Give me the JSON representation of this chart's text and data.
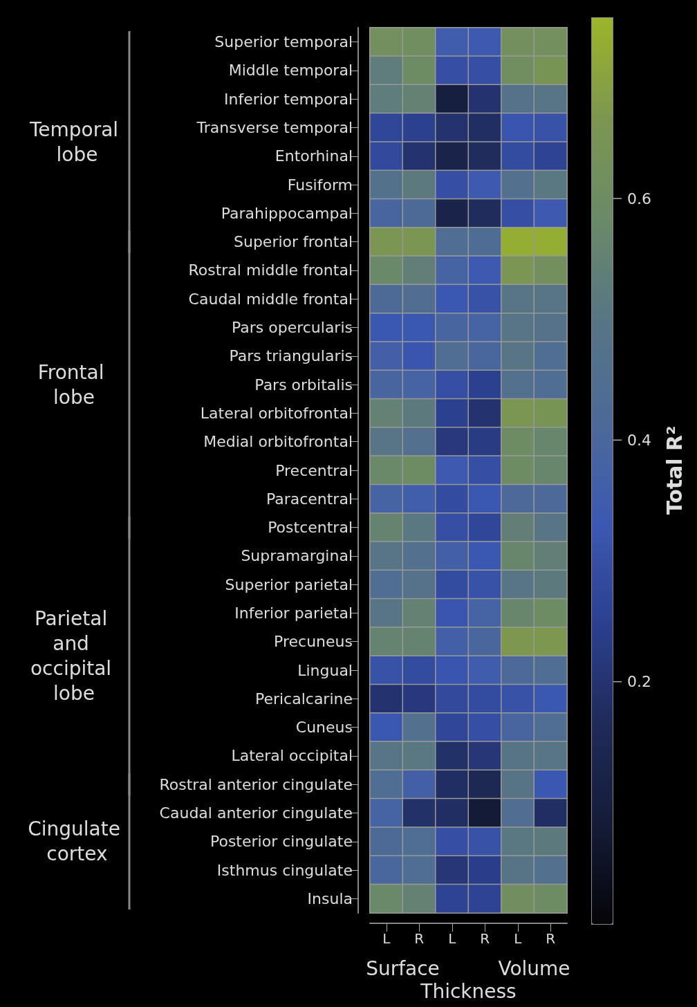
{
  "chart_data": {
    "type": "heatmap",
    "categories": [
      "L",
      "R",
      "L",
      "R",
      "L",
      "R"
    ],
    "y_categories": [
      "Superior temporal",
      "Middle temporal",
      "Inferior temporal",
      "Transverse temporal",
      "Entorhinal",
      "Fusiform",
      "Parahippocampal",
      "Superior frontal",
      "Rostral middle frontal",
      "Caudal middle frontal",
      "Pars opercularis",
      "Pars triangularis",
      "Pars orbitalis",
      "Lateral orbitofrontal",
      "Medial orbitofrontal",
      "Precentral",
      "Paracentral",
      "Postcentral",
      "Supramarginal",
      "Superior parietal",
      "Inferior parietal",
      "Precuneus",
      "Lingual",
      "Pericalcarine",
      "Cuneus",
      "Lateral occipital",
      "Rostral anterior cingulate",
      "Caudal anterior cingulate",
      "Posterior cingulate",
      "Isthmus cingulate",
      "Insula"
    ],
    "cells": [
      [
        0.62,
        0.61,
        0.35,
        0.34,
        0.62,
        0.62
      ],
      [
        0.53,
        0.6,
        0.3,
        0.3,
        0.61,
        0.65
      ],
      [
        0.53,
        0.55,
        0.1,
        0.2,
        0.48,
        0.5
      ],
      [
        0.27,
        0.25,
        0.2,
        0.18,
        0.32,
        0.31
      ],
      [
        0.28,
        0.2,
        0.13,
        0.17,
        0.29,
        0.26
      ],
      [
        0.47,
        0.52,
        0.3,
        0.34,
        0.46,
        0.51
      ],
      [
        0.39,
        0.42,
        0.13,
        0.17,
        0.3,
        0.34
      ],
      [
        0.66,
        0.66,
        0.44,
        0.43,
        0.73,
        0.73
      ],
      [
        0.58,
        0.54,
        0.38,
        0.34,
        0.66,
        0.62
      ],
      [
        0.42,
        0.45,
        0.33,
        0.31,
        0.5,
        0.5
      ],
      [
        0.33,
        0.33,
        0.39,
        0.38,
        0.5,
        0.48
      ],
      [
        0.37,
        0.32,
        0.44,
        0.4,
        0.5,
        0.44
      ],
      [
        0.39,
        0.38,
        0.3,
        0.25,
        0.46,
        0.44
      ],
      [
        0.55,
        0.52,
        0.25,
        0.2,
        0.66,
        0.65
      ],
      [
        0.5,
        0.46,
        0.22,
        0.23,
        0.6,
        0.57
      ],
      [
        0.58,
        0.6,
        0.34,
        0.3,
        0.6,
        0.57
      ],
      [
        0.38,
        0.36,
        0.29,
        0.33,
        0.41,
        0.41
      ],
      [
        0.56,
        0.51,
        0.3,
        0.27,
        0.54,
        0.5
      ],
      [
        0.5,
        0.46,
        0.37,
        0.33,
        0.57,
        0.54
      ],
      [
        0.44,
        0.48,
        0.29,
        0.31,
        0.5,
        0.52
      ],
      [
        0.5,
        0.55,
        0.32,
        0.38,
        0.57,
        0.6
      ],
      [
        0.56,
        0.56,
        0.37,
        0.4,
        0.67,
        0.67
      ],
      [
        0.31,
        0.29,
        0.32,
        0.35,
        0.41,
        0.44
      ],
      [
        0.2,
        0.22,
        0.28,
        0.29,
        0.31,
        0.33
      ],
      [
        0.33,
        0.46,
        0.27,
        0.3,
        0.39,
        0.44
      ],
      [
        0.5,
        0.51,
        0.19,
        0.21,
        0.49,
        0.5
      ],
      [
        0.44,
        0.37,
        0.18,
        0.15,
        0.49,
        0.33
      ],
      [
        0.38,
        0.19,
        0.18,
        0.08,
        0.45,
        0.18
      ],
      [
        0.42,
        0.44,
        0.3,
        0.31,
        0.51,
        0.52
      ],
      [
        0.4,
        0.44,
        0.21,
        0.24,
        0.49,
        0.46
      ],
      [
        0.58,
        0.55,
        0.26,
        0.26,
        0.61,
        0.6
      ]
    ],
    "clim": [
      0,
      0.75
    ],
    "cticks": [
      0.2,
      0.4,
      0.6
    ],
    "clabel": "Total R²",
    "annotations": [
      "Temporal lobe",
      "Frontal lobe",
      "Parietal and occipital lobe",
      "Cingulate cortex",
      "Surface",
      "Thickness",
      "Volume"
    ]
  }
}
